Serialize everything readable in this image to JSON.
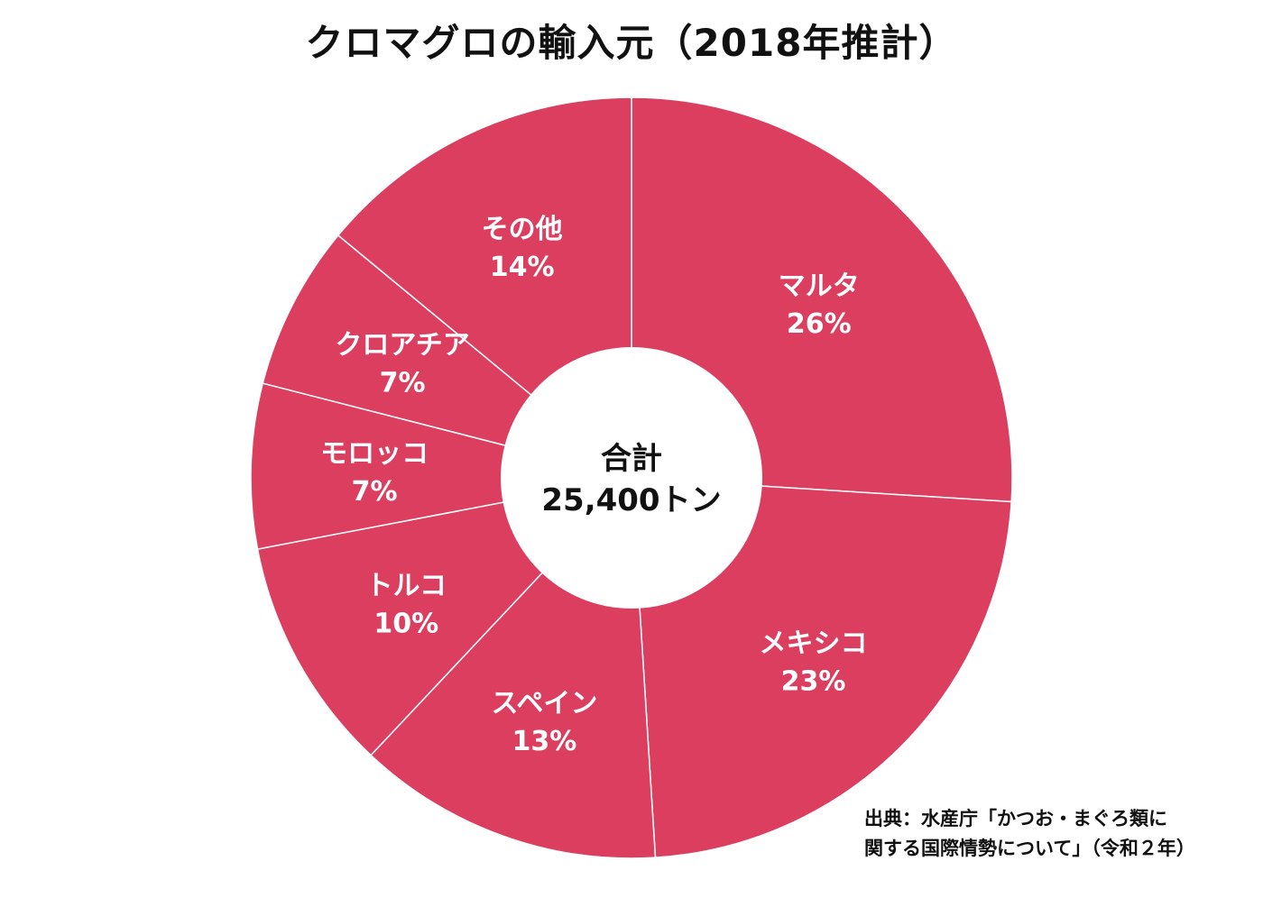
{
  "chart_data": {
    "type": "pie",
    "title": "クロマグロの輸入元（2018年推計）",
    "categories": [
      "マルタ",
      "メキシコ",
      "スペイン",
      "トルコ",
      "モロッコ",
      "クロアチア",
      "その他"
    ],
    "values": [
      26,
      23,
      13,
      10,
      7,
      7,
      14
    ],
    "percent_labels": [
      "26%",
      "23%",
      "13%",
      "10%",
      "7%",
      "7%",
      "14%"
    ],
    "unit": "%",
    "center_label": {
      "line1": "合計",
      "line2": "25,400トン"
    },
    "legend": "none"
  },
  "colors": {
    "slice": "#dc3e5f",
    "slice_border": "#ffffff",
    "center_fill": "#ffffff",
    "label_text": "#ffffff",
    "title_text": "#111111"
  },
  "source": {
    "line1": "出典：水産庁「かつお・まぐろ類に",
    "line2": "関する国際情勢について」（令和２年）"
  }
}
